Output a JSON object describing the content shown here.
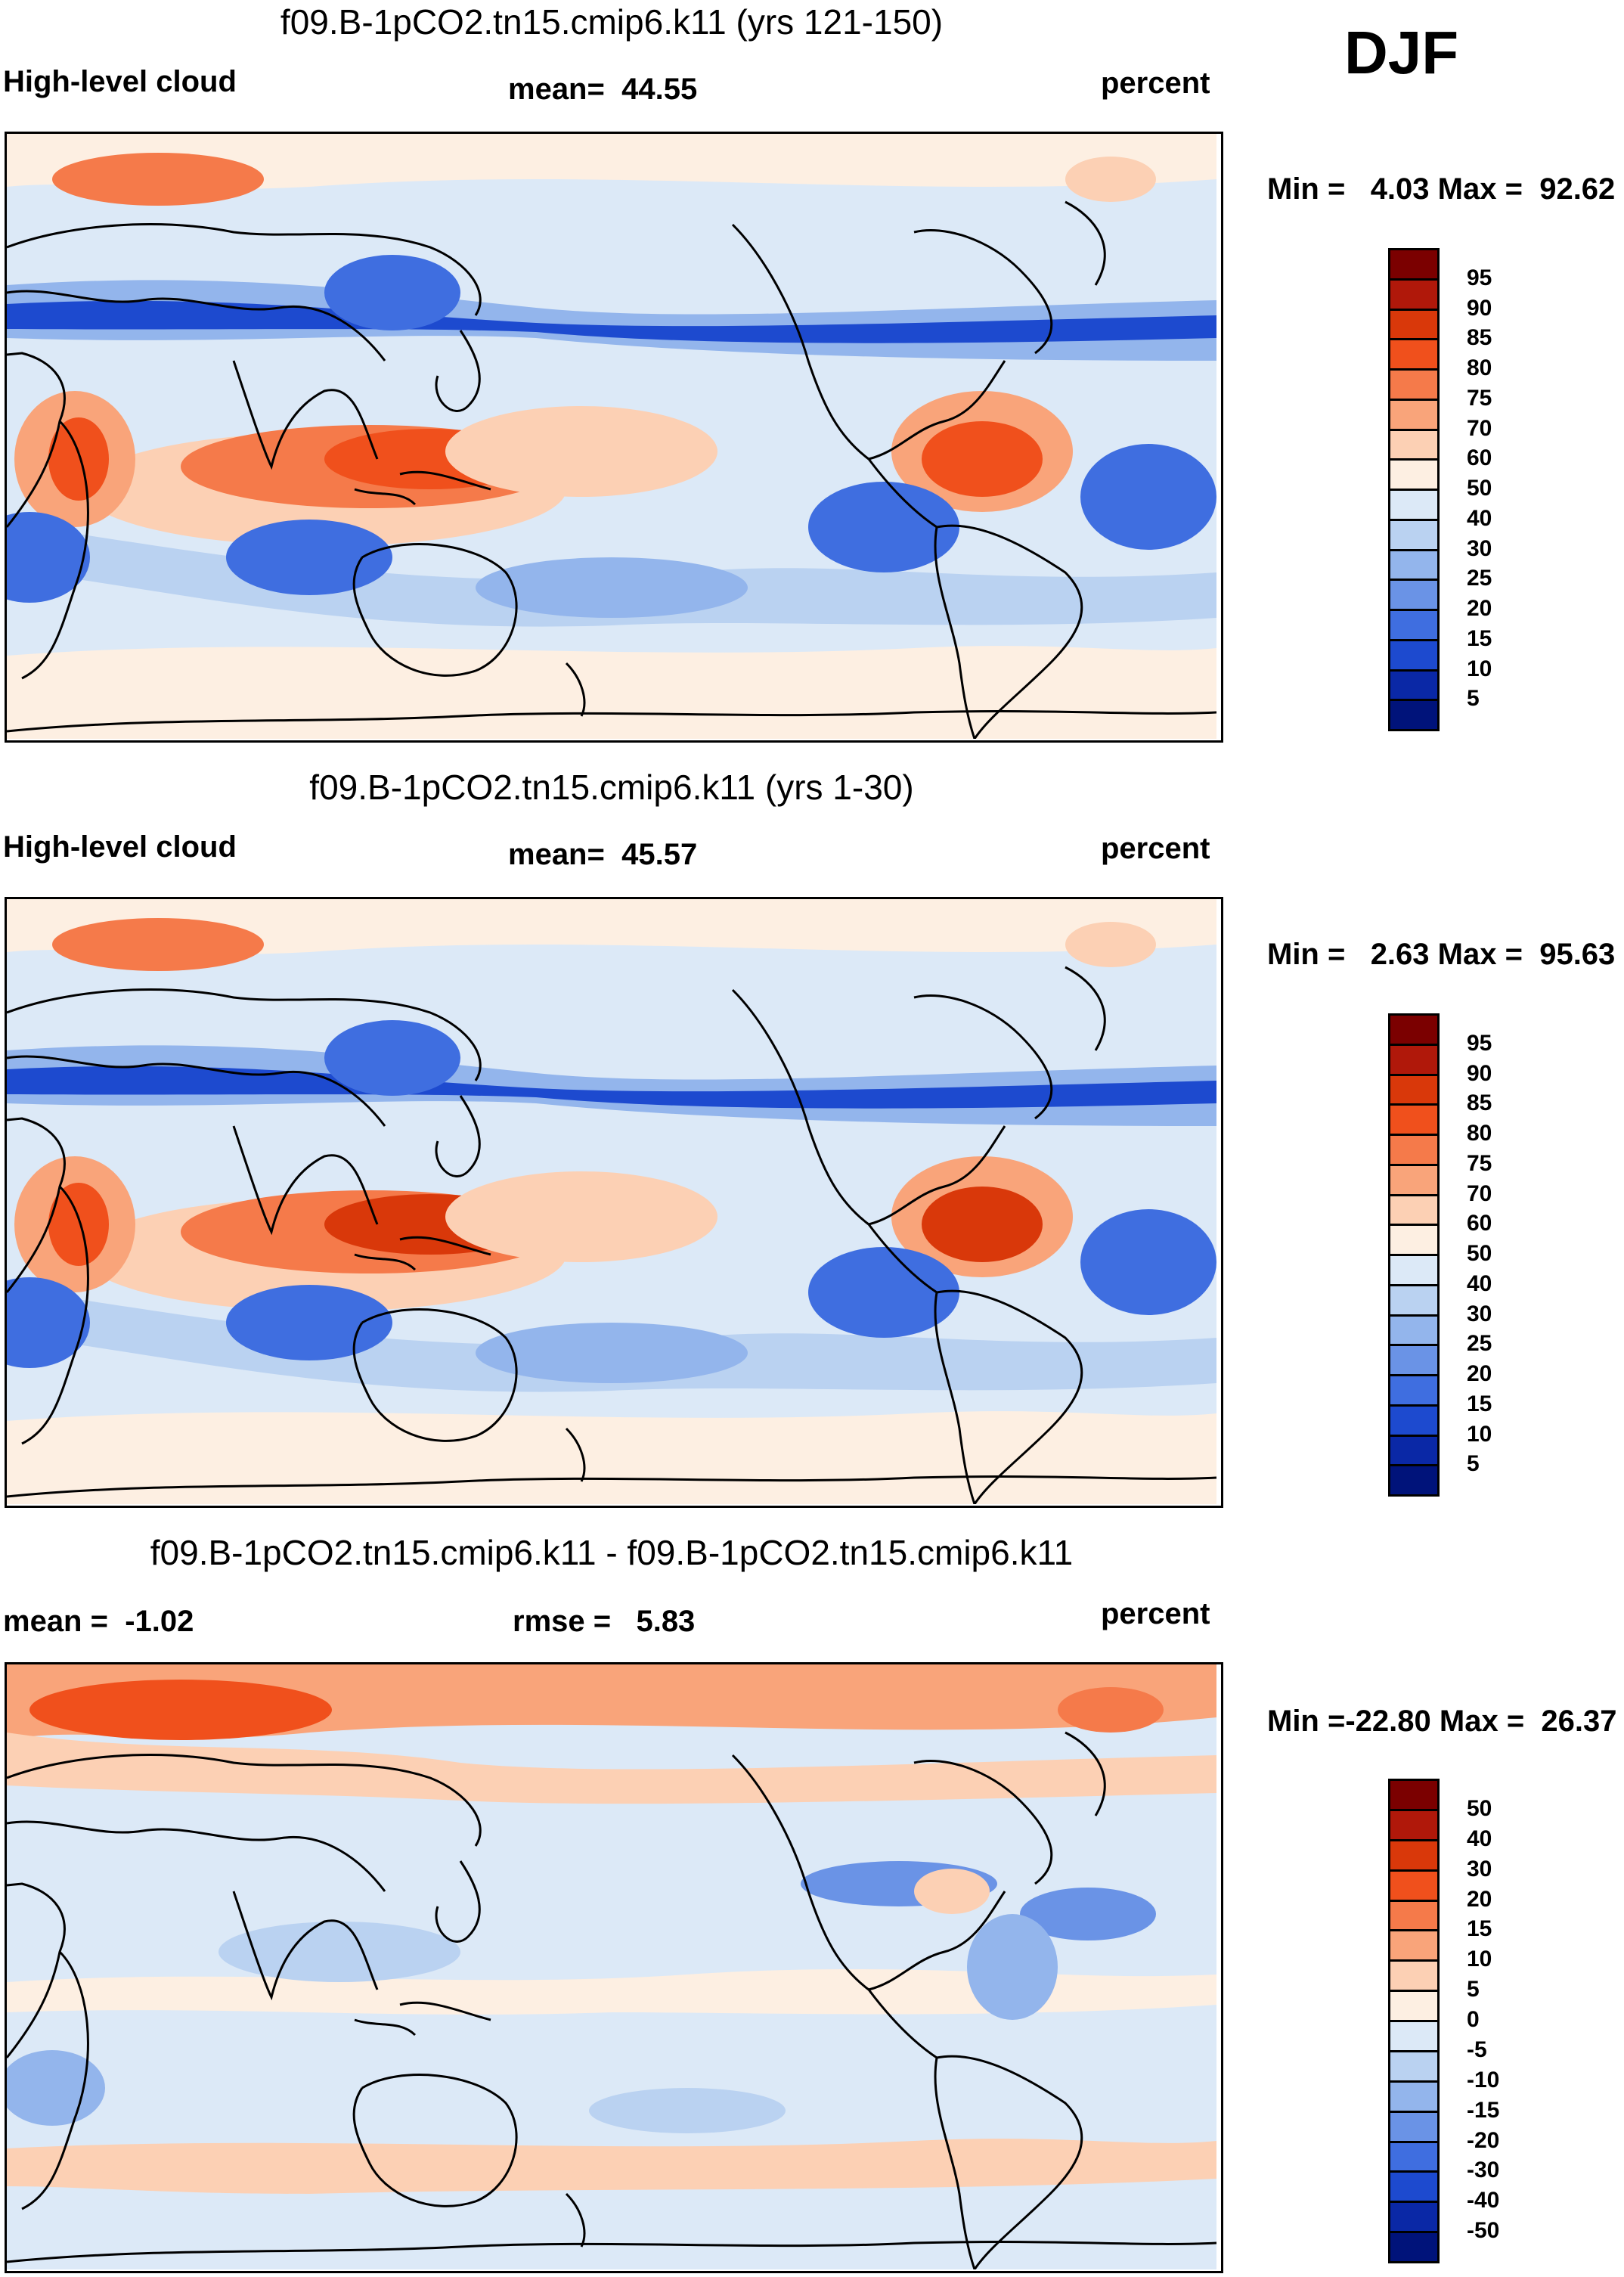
{
  "season": "DJF",
  "chart_data": [
    {
      "type": "heatmap",
      "title": "f09.B-1pCO2.tn15.cmip6.k11 (yrs 121-150)",
      "variable": "High-level cloud",
      "units": "percent",
      "mean_label": "mean=",
      "mean": "44.55",
      "min_label": "Min =",
      "min": "4.03",
      "max_label": "Max =",
      "max": "92.62",
      "levels": [
        "95",
        "90",
        "85",
        "80",
        "75",
        "70",
        "60",
        "50",
        "40",
        "30",
        "25",
        "20",
        "15",
        "10",
        "5"
      ],
      "colors": [
        "#7b0000",
        "#b0180a",
        "#d9380a",
        "#f0501c",
        "#f57a4a",
        "#f9a47a",
        "#fcd0b4",
        "#fdefe2",
        "#dce9f7",
        "#bad2f1",
        "#93b5ec",
        "#6a93e6",
        "#3f6ee0",
        "#1d4acf",
        "#0a28a6",
        "#00137a"
      ]
    },
    {
      "type": "heatmap",
      "title": "f09.B-1pCO2.tn15.cmip6.k11 (yrs 1-30)",
      "variable": "High-level cloud",
      "units": "percent",
      "mean_label": "mean=",
      "mean": "45.57",
      "min_label": "Min =",
      "min": "2.63",
      "max_label": "Max =",
      "max": "95.63",
      "levels": [
        "95",
        "90",
        "85",
        "80",
        "75",
        "70",
        "60",
        "50",
        "40",
        "30",
        "25",
        "20",
        "15",
        "10",
        "5"
      ],
      "colors": [
        "#7b0000",
        "#b0180a",
        "#d9380a",
        "#f0501c",
        "#f57a4a",
        "#f9a47a",
        "#fcd0b4",
        "#fdefe2",
        "#dce9f7",
        "#bad2f1",
        "#93b5ec",
        "#6a93e6",
        "#3f6ee0",
        "#1d4acf",
        "#0a28a6",
        "#00137a"
      ]
    },
    {
      "type": "heatmap",
      "title": "f09.B-1pCO2.tn15.cmip6.k11 - f09.B-1pCO2.tn15.cmip6.k11",
      "units": "percent",
      "mean_label": "mean =",
      "mean": "-1.02",
      "rmse_label": "rmse =",
      "rmse": "5.83",
      "min_label": "Min =",
      "min": "-22.80",
      "max_label": "Max =",
      "max": "26.37",
      "levels": [
        "50",
        "40",
        "30",
        "20",
        "15",
        "10",
        "5",
        "0",
        "-5",
        "-10",
        "-15",
        "-20",
        "-30",
        "-40",
        "-50"
      ],
      "colors": [
        "#7b0000",
        "#b0180a",
        "#d9380a",
        "#f0501c",
        "#f57a4a",
        "#f9a47a",
        "#fcd0b4",
        "#fdefe2",
        "#dce9f7",
        "#bad2f1",
        "#93b5ec",
        "#6a93e6",
        "#3f6ee0",
        "#1d4acf",
        "#0a28a6",
        "#00137a"
      ]
    }
  ]
}
